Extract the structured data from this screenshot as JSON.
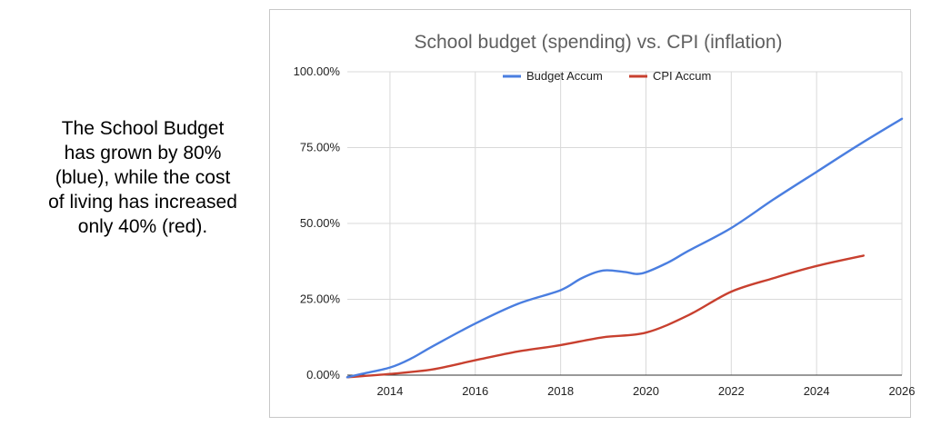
{
  "caption": {
    "lines": [
      "The School Budget",
      "has grown by 80%",
      "(blue), while the cost",
      "of living has increased",
      "only 40% (red)."
    ]
  },
  "colors": {
    "budget": "#4a7ee0",
    "cpi": "#c8402f",
    "grid": "#d9d9d9",
    "axis": "#333333"
  },
  "chart_data": {
    "type": "line",
    "title": "School budget (spending) vs. CPI (inflation)",
    "xlabel": "",
    "ylabel": "",
    "xlim": [
      2013,
      2026
    ],
    "ylim": [
      0,
      100
    ],
    "x_ticks": [
      2014,
      2016,
      2018,
      2020,
      2022,
      2024,
      2026
    ],
    "y_ticks": [
      0,
      25,
      50,
      75,
      100
    ],
    "y_tick_labels": [
      "0.00%",
      "25.00%",
      "50.00%",
      "75.00%",
      "100.00%"
    ],
    "grid": true,
    "legend_position": "top",
    "series": [
      {
        "name": "Budget Accum",
        "color": "#4a7ee0",
        "points": [
          [
            2013.0,
            -0.7
          ],
          [
            2013.3,
            0.3
          ],
          [
            2014.0,
            2.5
          ],
          [
            2014.5,
            5.5
          ],
          [
            2015.0,
            9.5
          ],
          [
            2016.0,
            17.0
          ],
          [
            2017.0,
            23.5
          ],
          [
            2018.0,
            28.0
          ],
          [
            2018.5,
            32.0
          ],
          [
            2019.0,
            34.5
          ],
          [
            2019.5,
            34.0
          ],
          [
            2019.9,
            33.5
          ],
          [
            2020.5,
            37.0
          ],
          [
            2021.0,
            41.0
          ],
          [
            2022.0,
            48.5
          ],
          [
            2023.0,
            58.0
          ],
          [
            2024.0,
            67.0
          ],
          [
            2025.0,
            76.0
          ],
          [
            2026.0,
            84.5
          ]
        ]
      },
      {
        "name": "CPI Accum",
        "color": "#c8402f",
        "points": [
          [
            2013.0,
            -0.7
          ],
          [
            2014.0,
            0.4
          ],
          [
            2015.0,
            1.9
          ],
          [
            2016.0,
            4.9
          ],
          [
            2017.0,
            7.8
          ],
          [
            2018.0,
            9.9
          ],
          [
            2019.0,
            12.5
          ],
          [
            2020.0,
            14.0
          ],
          [
            2021.0,
            19.8
          ],
          [
            2022.0,
            27.5
          ],
          [
            2023.0,
            32.0
          ],
          [
            2024.0,
            36.0
          ],
          [
            2025.1,
            39.4
          ]
        ]
      }
    ]
  }
}
